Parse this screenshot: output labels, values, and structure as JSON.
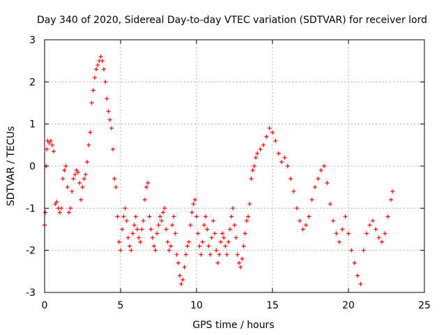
{
  "chart_data": {
    "type": "scatter",
    "title": "Day 340 of 2020, Sidereal Day-to-day VTEC variation (SDTVAR) for receiver lord",
    "xlabel": "GPS time / hours",
    "ylabel": "SDTVAR / TECUs",
    "xlim": [
      0,
      25
    ],
    "ylim": [
      -3,
      3
    ],
    "xticks": [
      0,
      5,
      10,
      15,
      20,
      25
    ],
    "yticks": [
      -3,
      -2,
      -1,
      0,
      1,
      2,
      3
    ],
    "xtick_labels": [
      "0",
      "5",
      "10",
      "15",
      "20",
      "25"
    ],
    "ytick_labels": [
      "-3",
      "-2",
      "-1",
      "0",
      "1",
      "2",
      "3"
    ],
    "grid": true,
    "marker": "+",
    "color": "#ff0000",
    "series": [
      {
        "name": "SDTVAR",
        "x": [
          0.0,
          0.05,
          0.1,
          0.15,
          0.2,
          0.3,
          0.4,
          0.5,
          0.6,
          0.7,
          0.8,
          0.9,
          1.0,
          1.1,
          1.2,
          1.3,
          1.4,
          1.5,
          1.6,
          1.7,
          1.8,
          1.9,
          2.0,
          2.1,
          2.2,
          2.3,
          2.4,
          2.5,
          2.6,
          2.7,
          2.8,
          2.9,
          3.0,
          3.1,
          3.2,
          3.3,
          3.4,
          3.5,
          3.6,
          3.7,
          3.8,
          3.9,
          4.0,
          4.1,
          4.2,
          4.3,
          4.4,
          4.5,
          4.6,
          4.7,
          4.8,
          4.9,
          5.0,
          5.1,
          5.2,
          5.3,
          5.4,
          5.5,
          5.6,
          5.7,
          5.8,
          5.9,
          6.0,
          6.1,
          6.2,
          6.3,
          6.4,
          6.5,
          6.6,
          6.7,
          6.8,
          6.9,
          7.0,
          7.1,
          7.2,
          7.3,
          7.4,
          7.5,
          7.6,
          7.7,
          7.8,
          7.9,
          8.0,
          8.1,
          8.2,
          8.3,
          8.4,
          8.5,
          8.6,
          8.7,
          8.8,
          8.9,
          9.0,
          9.1,
          9.2,
          9.3,
          9.4,
          9.5,
          9.6,
          9.7,
          9.8,
          9.9,
          10.0,
          10.1,
          10.2,
          10.3,
          10.4,
          10.5,
          10.6,
          10.7,
          10.8,
          10.9,
          11.0,
          11.1,
          11.2,
          11.3,
          11.4,
          11.5,
          11.6,
          11.7,
          11.8,
          11.9,
          12.0,
          12.1,
          12.2,
          12.3,
          12.4,
          12.5,
          12.6,
          12.7,
          12.8,
          12.9,
          13.0,
          13.1,
          13.2,
          13.3,
          13.4,
          13.5,
          13.6,
          13.7,
          13.8,
          13.9,
          14.0,
          14.2,
          14.4,
          14.6,
          14.8,
          15.0,
          15.2,
          15.4,
          15.6,
          15.8,
          16.0,
          16.2,
          16.4,
          16.6,
          16.8,
          17.0,
          17.2,
          17.4,
          17.6,
          17.8,
          18.0,
          18.2,
          18.4,
          18.6,
          18.8,
          19.0,
          19.2,
          19.4,
          19.6,
          19.8,
          20.0,
          20.2,
          20.4,
          20.6,
          20.8,
          21.0,
          21.2,
          21.4,
          21.6,
          21.8,
          22.0,
          22.2,
          22.4,
          22.6,
          22.8,
          22.9
        ],
        "y": [
          -1.4,
          -1.1,
          0.0,
          0.4,
          0.6,
          0.55,
          0.6,
          0.5,
          0.35,
          -0.9,
          -0.85,
          -1.0,
          -1.1,
          -1.0,
          -0.3,
          -0.1,
          0.0,
          -0.5,
          -1.1,
          -1.0,
          -0.6,
          -0.3,
          -0.2,
          -0.1,
          -0.15,
          -0.4,
          -0.8,
          -0.5,
          -0.3,
          -0.2,
          0.1,
          0.5,
          0.8,
          1.5,
          1.8,
          2.1,
          2.3,
          2.4,
          2.5,
          2.6,
          2.5,
          2.3,
          2.0,
          1.6,
          1.3,
          1.1,
          0.9,
          0.4,
          -0.3,
          -0.5,
          -1.2,
          -1.8,
          -2.0,
          -1.5,
          -1.2,
          -1.0,
          -1.3,
          -1.7,
          -1.9,
          -2.0,
          -1.6,
          -1.4,
          -1.2,
          -1.5,
          -1.7,
          -1.8,
          -1.5,
          -1.3,
          -0.8,
          -0.5,
          -0.4,
          -1.2,
          -1.5,
          -1.7,
          -1.9,
          -2.0,
          -1.6,
          -1.4,
          -1.2,
          -1.3,
          -1.1,
          -1.0,
          -1.5,
          -1.8,
          -2.0,
          -1.9,
          -1.4,
          -1.2,
          -1.6,
          -2.1,
          -2.3,
          -2.6,
          -2.8,
          -2.7,
          -2.4,
          -2.1,
          -1.9,
          -1.8,
          -1.4,
          -1.1,
          -0.9,
          -0.8,
          -1.2,
          -1.6,
          -1.9,
          -2.1,
          -1.8,
          -1.4,
          -1.2,
          -1.5,
          -1.9,
          -2.1,
          -1.7,
          -1.3,
          -1.6,
          -2.0,
          -2.3,
          -2.1,
          -1.8,
          -1.6,
          -1.7,
          -1.9,
          -2.1,
          -1.8,
          -1.5,
          -1.2,
          -1.0,
          -1.4,
          -1.7,
          -2.1,
          -2.3,
          -2.4,
          -2.2,
          -1.9,
          -1.6,
          -1.3,
          -1.2,
          -0.9,
          -0.3,
          -0.1,
          0.0,
          0.2,
          0.3,
          0.4,
          0.5,
          0.7,
          0.9,
          0.8,
          0.6,
          0.3,
          0.1,
          0.2,
          0.0,
          -0.3,
          -0.6,
          -1.0,
          -1.3,
          -1.5,
          -1.4,
          -1.2,
          -0.8,
          -0.5,
          -0.3,
          -0.1,
          0.0,
          -0.4,
          -0.9,
          -1.3,
          -1.6,
          -1.8,
          -1.5,
          -1.2,
          -1.6,
          -2.0,
          -2.3,
          -2.6,
          -2.8,
          -2.0,
          -1.6,
          -1.4,
          -1.3,
          -1.5,
          -1.7,
          -1.8,
          -1.6,
          -1.2,
          -0.8,
          -0.6
        ]
      }
    ]
  }
}
